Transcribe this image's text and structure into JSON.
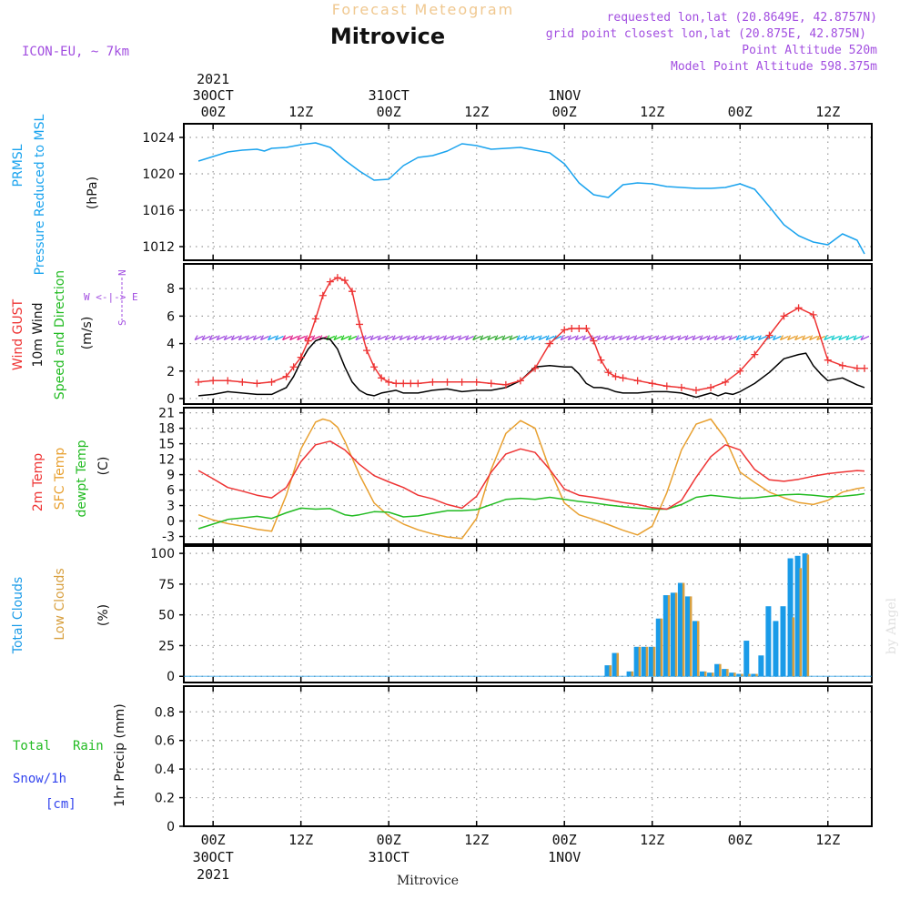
{
  "header": {
    "banner": "Forecast Meteogram",
    "station": "Mitrovice",
    "model": "ICON-EU, ~ 7km",
    "requested": "requested lon,lat (20.8649E, 42.8757N)",
    "gridpoint": "grid point closest lon,lat (20.875E, 42.875N)",
    "point_alt": "Point Altitude 520m",
    "model_alt": "Model Point Altitude 598.375m",
    "watermark": "by Angel",
    "footer": "Mitrovice"
  },
  "colors": {
    "pressure": "#1aa3ee",
    "gust": "#ee3333",
    "wind": "#000000",
    "green": "#22bb22",
    "sfc": "#e8a030",
    "purple": "#a24ee0",
    "snow": "#3344ee",
    "total_cloud": "#1a9be8",
    "low_cloud": "#d8a040",
    "banner": "#f0c890"
  },
  "chart_data": [
    {
      "id": "pressure",
      "type": "line",
      "ylabels": [
        "PRMSL",
        "Pressure Reduced to MSL",
        "(hPa)"
      ],
      "yticks": [
        1012,
        1016,
        1020,
        1024
      ],
      "ylim": [
        1010.5,
        1025.5
      ],
      "series": [
        {
          "key": "prmsl",
          "x": [
            -2,
            0,
            2,
            4,
            6,
            7,
            8,
            10,
            12,
            14,
            16,
            18,
            20,
            22,
            24,
            26,
            28,
            30,
            32,
            34,
            36,
            38,
            40,
            42,
            44,
            46,
            48,
            50,
            52,
            54,
            56,
            58,
            60,
            62,
            64,
            66,
            68,
            70,
            72,
            74,
            76,
            78,
            80,
            82,
            84,
            86,
            88,
            89
          ],
          "values": [
            1021.4,
            1021.9,
            1022.4,
            1022.6,
            1022.7,
            1022.5,
            1022.8,
            1022.9,
            1023.2,
            1023.4,
            1022.9,
            1021.5,
            1020.3,
            1019.3,
            1019.4,
            1020.9,
            1021.8,
            1022.0,
            1022.5,
            1023.3,
            1023.1,
            1022.7,
            1022.8,
            1022.9,
            1022.6,
            1022.3,
            1021.1,
            1019.0,
            1017.7,
            1017.4,
            1018.8,
            1019.0,
            1018.9,
            1018.6,
            1018.5,
            1018.4,
            1018.4,
            1018.5,
            1018.9,
            1018.3,
            1016.4,
            1014.4,
            1013.2,
            1012.5,
            1012.2,
            1013.4,
            1012.7,
            1011.2
          ]
        }
      ]
    },
    {
      "id": "wind",
      "type": "line",
      "ylabels": [
        "Wind GUST",
        "10m Wind",
        "Speed and Direction",
        "(m/s)"
      ],
      "yticks": [
        0,
        2,
        4,
        6,
        8
      ],
      "ylim": [
        -0.4,
        9.8
      ],
      "compass": {
        "n": "N",
        "s": "S",
        "we": "W <-|-> E"
      },
      "series": [
        {
          "key": "gust",
          "x": [
            -2,
            0,
            2,
            4,
            6,
            8,
            10,
            11,
            12,
            13,
            14,
            15,
            16,
            17,
            18,
            19,
            20,
            21,
            22,
            23,
            24,
            25,
            26,
            27,
            28,
            30,
            32,
            34,
            36,
            38,
            40,
            42,
            44,
            46,
            48,
            49,
            50,
            51,
            52,
            53,
            54,
            55,
            56,
            58,
            60,
            62,
            64,
            66,
            68,
            70,
            72,
            74,
            76,
            78,
            80,
            82,
            84,
            86,
            88,
            89
          ],
          "values": [
            1.2,
            1.3,
            1.3,
            1.2,
            1.1,
            1.2,
            1.6,
            2.3,
            3.0,
            4.2,
            5.8,
            7.5,
            8.5,
            8.8,
            8.6,
            7.8,
            5.4,
            3.5,
            2.3,
            1.5,
            1.2,
            1.1,
            1.1,
            1.1,
            1.1,
            1.2,
            1.2,
            1.2,
            1.2,
            1.1,
            1.0,
            1.3,
            2.2,
            4.0,
            5.0,
            5.1,
            5.1,
            5.1,
            4.2,
            2.8,
            1.9,
            1.6,
            1.5,
            1.3,
            1.1,
            0.9,
            0.8,
            0.6,
            0.8,
            1.2,
            2.0,
            3.2,
            4.6,
            6.0,
            6.6,
            6.1,
            2.8,
            2.4,
            2.2,
            2.2
          ]
        },
        {
          "key": "speed",
          "x": [
            -2,
            0,
            2,
            4,
            6,
            8,
            10,
            11,
            12,
            13,
            14,
            15,
            16,
            17,
            18,
            19,
            20,
            21,
            22,
            23,
            24,
            25,
            26,
            27,
            28,
            30,
            32,
            34,
            36,
            38,
            40,
            42,
            44,
            46,
            48,
            49,
            50,
            51,
            52,
            53,
            54,
            55,
            56,
            58,
            60,
            62,
            64,
            66,
            68,
            69,
            70,
            71,
            72,
            74,
            76,
            78,
            80,
            81,
            82,
            83,
            84,
            86,
            88,
            89
          ],
          "values": [
            0.2,
            0.3,
            0.5,
            0.4,
            0.3,
            0.3,
            0.8,
            1.6,
            2.7,
            3.6,
            4.2,
            4.4,
            4.3,
            3.6,
            2.3,
            1.2,
            0.6,
            0.3,
            0.2,
            0.4,
            0.5,
            0.6,
            0.4,
            0.4,
            0.4,
            0.6,
            0.7,
            0.5,
            0.6,
            0.6,
            0.8,
            1.3,
            2.3,
            2.4,
            2.3,
            2.3,
            1.8,
            1.1,
            0.8,
            0.8,
            0.7,
            0.5,
            0.4,
            0.4,
            0.5,
            0.5,
            0.4,
            0.1,
            0.4,
            0.2,
            0.4,
            0.3,
            0.5,
            1.1,
            1.9,
            2.9,
            3.2,
            3.3,
            2.4,
            1.8,
            1.3,
            1.5,
            1.0,
            0.8
          ]
        }
      ]
    },
    {
      "id": "temp",
      "type": "line",
      "ylabels": [
        "2m Temp",
        "SFC Temp",
        "dewpt Temp",
        "(C)"
      ],
      "yticks": [
        -3,
        0,
        3,
        6,
        9,
        12,
        15,
        18,
        21
      ],
      "ylim": [
        -4.5,
        22
      ],
      "series": [
        {
          "key": "t2m",
          "x": [
            -2,
            0,
            2,
            4,
            6,
            8,
            10,
            12,
            14,
            16,
            18,
            20,
            22,
            24,
            26,
            28,
            30,
            32,
            34,
            36,
            38,
            40,
            42,
            44,
            46,
            48,
            50,
            52,
            54,
            56,
            58,
            60,
            62,
            64,
            66,
            68,
            70,
            72,
            74,
            76,
            78,
            80,
            82,
            84,
            86,
            88,
            89
          ],
          "values": [
            9.8,
            8.2,
            6.5,
            5.8,
            5.0,
            4.5,
            6.5,
            11.5,
            14.8,
            15.5,
            13.8,
            11.0,
            8.8,
            7.6,
            6.5,
            5.0,
            4.3,
            3.2,
            2.5,
            4.8,
            9.5,
            13.0,
            14.0,
            13.3,
            10.0,
            6.2,
            5.0,
            4.6,
            4.1,
            3.6,
            3.2,
            2.6,
            2.3,
            4.0,
            8.5,
            12.5,
            14.8,
            13.8,
            10.0,
            8.0,
            7.7,
            8.1,
            8.7,
            9.2,
            9.5,
            9.8,
            9.7
          ]
        },
        {
          "key": "sfc",
          "x": [
            -2,
            0,
            2,
            4,
            6,
            8,
            10,
            12,
            14,
            15,
            16,
            17,
            18,
            20,
            22,
            24,
            26,
            28,
            30,
            32,
            34,
            36,
            38,
            40,
            42,
            44,
            46,
            48,
            50,
            52,
            54,
            56,
            58,
            60,
            62,
            64,
            66,
            68,
            70,
            72,
            74,
            76,
            78,
            80,
            82,
            84,
            86,
            88,
            89
          ],
          "values": [
            1.2,
            0.2,
            -0.5,
            -1.0,
            -1.6,
            -2.0,
            5.0,
            14.0,
            19.2,
            19.8,
            19.4,
            18.2,
            15.5,
            9.0,
            3.5,
            1.0,
            -0.6,
            -1.7,
            -2.5,
            -3.1,
            -3.4,
            0.5,
            10.0,
            17.0,
            19.5,
            18.0,
            10.0,
            3.5,
            1.2,
            0.3,
            -0.7,
            -1.8,
            -2.7,
            -1.0,
            5.5,
            13.8,
            18.8,
            19.8,
            16.0,
            9.5,
            7.5,
            5.6,
            4.5,
            3.6,
            3.2,
            4.0,
            5.6,
            6.3,
            6.5
          ]
        },
        {
          "key": "dewpt",
          "x": [
            -2,
            0,
            2,
            4,
            6,
            8,
            10,
            12,
            14,
            16,
            18,
            19,
            20,
            22,
            24,
            26,
            28,
            30,
            32,
            34,
            36,
            38,
            40,
            42,
            44,
            46,
            48,
            50,
            52,
            54,
            56,
            58,
            60,
            62,
            64,
            66,
            68,
            70,
            72,
            74,
            76,
            78,
            80,
            82,
            84,
            86,
            88,
            89
          ],
          "values": [
            -1.5,
            -0.6,
            0.3,
            0.6,
            0.9,
            0.5,
            1.6,
            2.5,
            2.3,
            2.4,
            1.2,
            1.0,
            1.2,
            1.8,
            1.7,
            0.8,
            1.0,
            1.5,
            2.0,
            2.0,
            2.2,
            3.2,
            4.2,
            4.4,
            4.2,
            4.6,
            4.2,
            3.8,
            3.5,
            3.1,
            2.8,
            2.5,
            2.3,
            2.3,
            3.2,
            4.6,
            5.0,
            4.7,
            4.4,
            4.5,
            4.8,
            5.1,
            5.2,
            5.0,
            4.7,
            4.8,
            5.1,
            5.3
          ]
        }
      ]
    },
    {
      "id": "clouds",
      "type": "bar",
      "ylabels": [
        "Total Clouds",
        "Low Clouds",
        "(%)"
      ],
      "yticks": [
        0,
        25,
        50,
        75,
        100
      ],
      "ylim": [
        -5,
        106
      ],
      "x": [
        45,
        46,
        48,
        49,
        50,
        51,
        52,
        53,
        54,
        55,
        56,
        57,
        58,
        59,
        60,
        61,
        62,
        63,
        64,
        65,
        66,
        67,
        68,
        69,
        70,
        71,
        72,
        73,
        74,
        75,
        76,
        77,
        78,
        79,
        80,
        81,
        82,
        83,
        84,
        85,
        86,
        87,
        88,
        89
      ],
      "total": [
        0,
        0,
        0,
        0,
        0,
        0,
        0,
        0,
        9,
        19,
        0,
        4,
        24,
        24,
        24,
        47,
        66,
        68,
        76,
        65,
        45,
        4,
        3,
        10,
        6,
        3,
        2,
        29,
        2,
        17,
        57,
        45,
        57,
        96,
        98,
        100,
        0,
        0,
        0,
        0,
        0,
        0,
        0,
        0
      ],
      "low": [
        0,
        0,
        0,
        0,
        0,
        0,
        0,
        0,
        9,
        19,
        0,
        4,
        24,
        24,
        24,
        47,
        66,
        68,
        76,
        65,
        45,
        4,
        3,
        10,
        6,
        3,
        2,
        2,
        2,
        0,
        0,
        0,
        0,
        48,
        88,
        99,
        0,
        0,
        0,
        0,
        0,
        0,
        0,
        0
      ]
    },
    {
      "id": "precip",
      "type": "bar",
      "ylabels": [
        "1hr Precip (mm)"
      ],
      "legend": [
        "Total",
        "Rain",
        "Snow/1h",
        "[cm]"
      ],
      "yticks": [
        "0",
        "0.2",
        "0.4",
        "0.6",
        "0.8"
      ],
      "ylim": [
        0,
        0.98
      ],
      "values": []
    }
  ],
  "time_axis": {
    "x_start": -4,
    "x_end": 90,
    "ticks": [
      {
        "h": 0,
        "label": "00Z"
      },
      {
        "h": 12,
        "label": "12Z"
      },
      {
        "h": 24,
        "label": "00Z"
      },
      {
        "h": 36,
        "label": "12Z"
      },
      {
        "h": 48,
        "label": "00Z"
      },
      {
        "h": 60,
        "label": "12Z"
      },
      {
        "h": 72,
        "label": "00Z"
      },
      {
        "h": 84,
        "label": "12Z"
      }
    ],
    "days": [
      {
        "h": 0,
        "date": "30OCT",
        "year": "2021"
      },
      {
        "h": 24,
        "date": "31OCT",
        "year": ""
      },
      {
        "h": 48,
        "date": "1NOV",
        "year": ""
      },
      {
        "h": 72,
        "date": "",
        "year": ""
      }
    ]
  }
}
